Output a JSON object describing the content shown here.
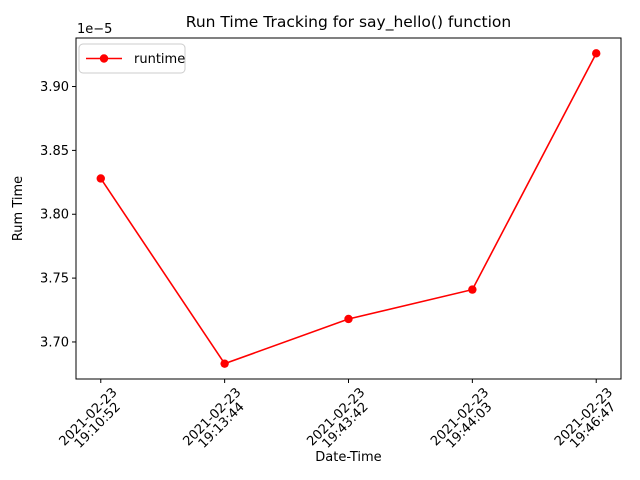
{
  "chart_data": {
    "type": "line",
    "title": "Run Time Tracking for say_hello() function",
    "xlabel": "Date-Time",
    "ylabel": "Rum Time",
    "y_offset_label": "1e−5",
    "grid": false,
    "line_color": "#ff0000",
    "marker": "circle",
    "categories": [
      "2021-02-23 19:10:52",
      "2021-02-23 19:13:44",
      "2021-02-23 19:43:42",
      "2021-02-23 19:44:03",
      "2021-02-23 19:46:47"
    ],
    "x_tick_labels": [
      [
        "2021-02-23",
        "19:10:52"
      ],
      [
        "2021-02-23",
        "19:13:44"
      ],
      [
        "2021-02-23",
        "19:43:42"
      ],
      [
        "2021-02-23",
        "19:44:03"
      ],
      [
        "2021-02-23",
        "19:46:47"
      ]
    ],
    "series": [
      {
        "name": "runtime",
        "color": "#ff0000",
        "values": [
          3.828e-05,
          3.683e-05,
          3.718e-05,
          3.741e-05,
          3.926e-05
        ]
      }
    ],
    "ylim": [
      3.671e-05,
      3.938e-05
    ],
    "y_ticks": {
      "values": [
        3.7e-05,
        3.75e-05,
        3.8e-05,
        3.85e-05,
        3.9e-05
      ],
      "labels": [
        "3.70",
        "3.75",
        "3.80",
        "3.85",
        "3.90"
      ]
    },
    "legend": {
      "position": "upper left",
      "entries": [
        {
          "label": "runtime",
          "color": "#ff0000",
          "marker": "circle"
        }
      ]
    }
  }
}
